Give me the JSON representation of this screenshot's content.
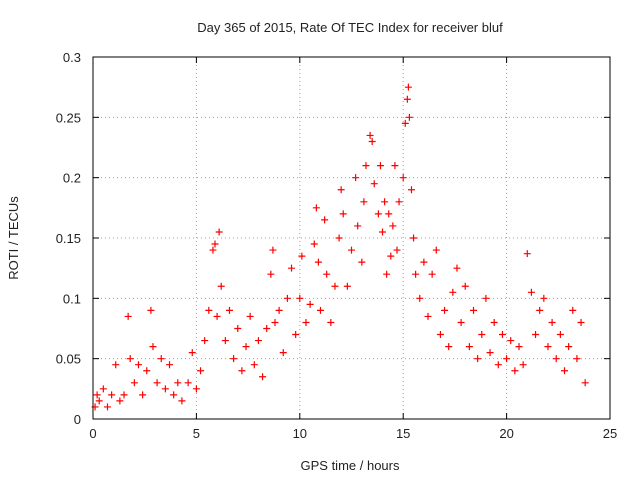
{
  "chart_data": {
    "type": "scatter",
    "title": "Day 365 of 2015, Rate Of TEC Index for receiver bluf",
    "xlabel": "GPS time / hours",
    "ylabel": "ROTI / TECUs",
    "xlim": [
      0,
      25
    ],
    "ylim": [
      0,
      0.3
    ],
    "xticks": [
      "0",
      "5",
      "10",
      "15",
      "20",
      "25"
    ],
    "yticks": [
      "0",
      "0.05",
      "0.1",
      "0.15",
      "0.2",
      "0.25",
      "0.3"
    ],
    "grid": true,
    "marker": "+",
    "series": [
      {
        "name": "ROTI",
        "color": "#ff0000",
        "points": [
          [
            0.1,
            0.01
          ],
          [
            0.2,
            0.02
          ],
          [
            0.3,
            0.015
          ],
          [
            0.5,
            0.025
          ],
          [
            0.7,
            0.01
          ],
          [
            0.9,
            0.02
          ],
          [
            1.1,
            0.045
          ],
          [
            1.3,
            0.015
          ],
          [
            1.5,
            0.02
          ],
          [
            1.7,
            0.085
          ],
          [
            1.8,
            0.05
          ],
          [
            2.0,
            0.03
          ],
          [
            2.2,
            0.045
          ],
          [
            2.4,
            0.02
          ],
          [
            2.6,
            0.04
          ],
          [
            2.8,
            0.09
          ],
          [
            2.9,
            0.06
          ],
          [
            3.1,
            0.03
          ],
          [
            3.3,
            0.05
          ],
          [
            3.5,
            0.025
          ],
          [
            3.7,
            0.045
          ],
          [
            3.9,
            0.02
          ],
          [
            4.1,
            0.03
          ],
          [
            4.3,
            0.015
          ],
          [
            4.6,
            0.03
          ],
          [
            4.8,
            0.055
          ],
          [
            5.0,
            0.025
          ],
          [
            5.2,
            0.04
          ],
          [
            5.4,
            0.065
          ],
          [
            5.6,
            0.09
          ],
          [
            5.8,
            0.14
          ],
          [
            5.9,
            0.145
          ],
          [
            6.0,
            0.085
          ],
          [
            6.1,
            0.155
          ],
          [
            6.2,
            0.11
          ],
          [
            6.4,
            0.065
          ],
          [
            6.6,
            0.09
          ],
          [
            6.8,
            0.05
          ],
          [
            7.0,
            0.075
          ],
          [
            7.2,
            0.04
          ],
          [
            7.4,
            0.06
          ],
          [
            7.6,
            0.085
          ],
          [
            7.8,
            0.045
          ],
          [
            8.0,
            0.065
          ],
          [
            8.2,
            0.035
          ],
          [
            8.4,
            0.075
          ],
          [
            8.6,
            0.12
          ],
          [
            8.7,
            0.14
          ],
          [
            8.8,
            0.08
          ],
          [
            9.0,
            0.09
          ],
          [
            9.2,
            0.055
          ],
          [
            9.4,
            0.1
          ],
          [
            9.6,
            0.125
          ],
          [
            9.8,
            0.07
          ],
          [
            10.0,
            0.1
          ],
          [
            10.1,
            0.135
          ],
          [
            10.3,
            0.08
          ],
          [
            10.5,
            0.095
          ],
          [
            10.7,
            0.145
          ],
          [
            10.8,
            0.175
          ],
          [
            10.9,
            0.13
          ],
          [
            11.0,
            0.09
          ],
          [
            11.2,
            0.165
          ],
          [
            11.3,
            0.12
          ],
          [
            11.5,
            0.08
          ],
          [
            11.7,
            0.11
          ],
          [
            11.9,
            0.15
          ],
          [
            12.0,
            0.19
          ],
          [
            12.1,
            0.17
          ],
          [
            12.3,
            0.11
          ],
          [
            12.5,
            0.14
          ],
          [
            12.7,
            0.2
          ],
          [
            12.8,
            0.16
          ],
          [
            13.0,
            0.13
          ],
          [
            13.1,
            0.18
          ],
          [
            13.2,
            0.21
          ],
          [
            13.4,
            0.235
          ],
          [
            13.5,
            0.23
          ],
          [
            13.6,
            0.195
          ],
          [
            13.8,
            0.17
          ],
          [
            13.9,
            0.21
          ],
          [
            14.0,
            0.155
          ],
          [
            14.1,
            0.18
          ],
          [
            14.2,
            0.12
          ],
          [
            14.3,
            0.17
          ],
          [
            14.4,
            0.135
          ],
          [
            14.5,
            0.16
          ],
          [
            14.6,
            0.21
          ],
          [
            14.7,
            0.14
          ],
          [
            14.8,
            0.18
          ],
          [
            15.0,
            0.2
          ],
          [
            15.1,
            0.245
          ],
          [
            15.2,
            0.265
          ],
          [
            15.25,
            0.275
          ],
          [
            15.3,
            0.25
          ],
          [
            15.4,
            0.19
          ],
          [
            15.5,
            0.15
          ],
          [
            15.6,
            0.12
          ],
          [
            15.8,
            0.1
          ],
          [
            16.0,
            0.13
          ],
          [
            16.2,
            0.085
          ],
          [
            16.4,
            0.12
          ],
          [
            16.6,
            0.14
          ],
          [
            16.8,
            0.07
          ],
          [
            17.0,
            0.09
          ],
          [
            17.2,
            0.06
          ],
          [
            17.4,
            0.105
          ],
          [
            17.6,
            0.125
          ],
          [
            17.8,
            0.08
          ],
          [
            18.0,
            0.11
          ],
          [
            18.2,
            0.06
          ],
          [
            18.4,
            0.09
          ],
          [
            18.6,
            0.05
          ],
          [
            18.8,
            0.07
          ],
          [
            19.0,
            0.1
          ],
          [
            19.2,
            0.055
          ],
          [
            19.4,
            0.08
          ],
          [
            19.6,
            0.045
          ],
          [
            19.8,
            0.07
          ],
          [
            20.0,
            0.05
          ],
          [
            20.2,
            0.065
          ],
          [
            20.4,
            0.04
          ],
          [
            20.6,
            0.06
          ],
          [
            20.8,
            0.045
          ],
          [
            21.0,
            0.137
          ],
          [
            21.2,
            0.105
          ],
          [
            21.4,
            0.07
          ],
          [
            21.6,
            0.09
          ],
          [
            21.8,
            0.1
          ],
          [
            22.0,
            0.06
          ],
          [
            22.2,
            0.08
          ],
          [
            22.4,
            0.05
          ],
          [
            22.6,
            0.07
          ],
          [
            22.8,
            0.04
          ],
          [
            23.0,
            0.06
          ],
          [
            23.2,
            0.09
          ],
          [
            23.4,
            0.05
          ],
          [
            23.6,
            0.08
          ],
          [
            23.8,
            0.03
          ]
        ]
      }
    ]
  }
}
